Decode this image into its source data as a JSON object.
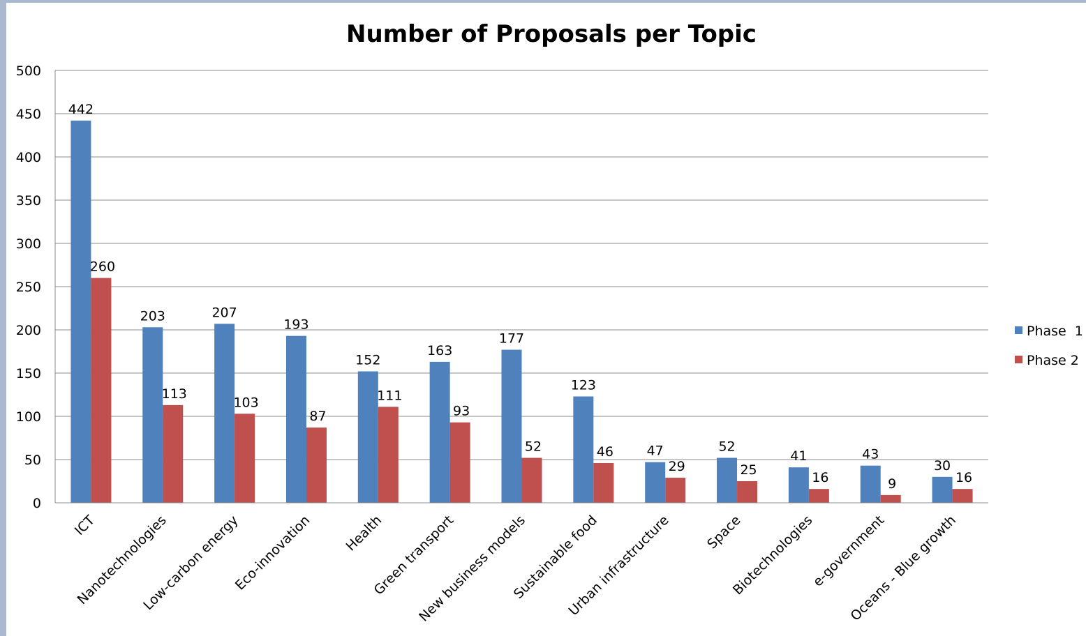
{
  "chart_data": {
    "type": "bar",
    "title": "Number of Proposals per Topic",
    "xlabel": "",
    "ylabel": "",
    "ylim": [
      0,
      500
    ],
    "yticks": [
      0,
      50,
      100,
      150,
      200,
      250,
      300,
      350,
      400,
      450,
      500
    ],
    "grid": true,
    "legend_position": "right",
    "categories": [
      "ICT",
      "Nanotechnologies",
      "Low-carbon energy",
      "Eco-innovation",
      "Health",
      "Green transport",
      "New business models",
      "Sustainable food",
      "Urban infrastructure",
      "Space",
      "Biotechnologies",
      "e-government",
      "Oceans - Blue growth"
    ],
    "series": [
      {
        "name": "Phase  1",
        "color": "#4f81bd",
        "values": [
          442,
          203,
          207,
          193,
          152,
          163,
          177,
          123,
          47,
          52,
          41,
          43,
          30
        ]
      },
      {
        "name": "Phase 2",
        "color": "#c0504d",
        "values": [
          260,
          113,
          103,
          87,
          111,
          93,
          52,
          46,
          29,
          25,
          16,
          9,
          16
        ]
      }
    ]
  }
}
